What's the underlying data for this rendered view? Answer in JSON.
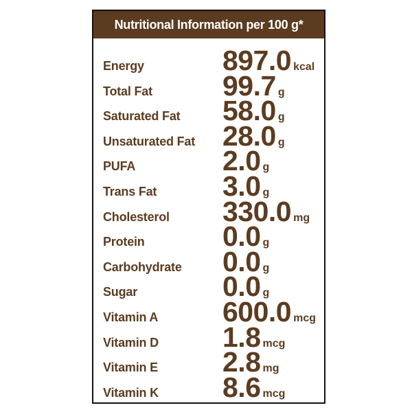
{
  "header": {
    "title": "Nutritional Information per 100 g*"
  },
  "rows": [
    {
      "label": "Energy",
      "value": "897.0",
      "unit": "kcal"
    },
    {
      "label": "Total Fat",
      "value": "99.7",
      "unit": "g"
    },
    {
      "label": "Saturated Fat",
      "value": "58.0",
      "unit": "g"
    },
    {
      "label": "Unsaturated Fat",
      "value": "28.0",
      "unit": "g"
    },
    {
      "label": "PUFA",
      "value": "2.0",
      "unit": "g"
    },
    {
      "label": "Trans Fat",
      "value": "3.0",
      "unit": "g"
    },
    {
      "label": "Cholesterol",
      "value": "330.0",
      "unit": "mg"
    },
    {
      "label": "Protein",
      "value": "0.0",
      "unit": "g"
    },
    {
      "label": "Carbohydrate",
      "value": "0.0",
      "unit": "g"
    },
    {
      "label": "Sugar",
      "value": "0.0",
      "unit": "g"
    },
    {
      "label": "Vitamin A",
      "value": "600.0",
      "unit": "mcg"
    },
    {
      "label": "Vitamin D",
      "value": "1.8",
      "unit": "mcg"
    },
    {
      "label": "Vitamin E",
      "value": "2.8",
      "unit": "mg"
    },
    {
      "label": "Vitamin K",
      "value": "8.6",
      "unit": "mcg"
    }
  ]
}
